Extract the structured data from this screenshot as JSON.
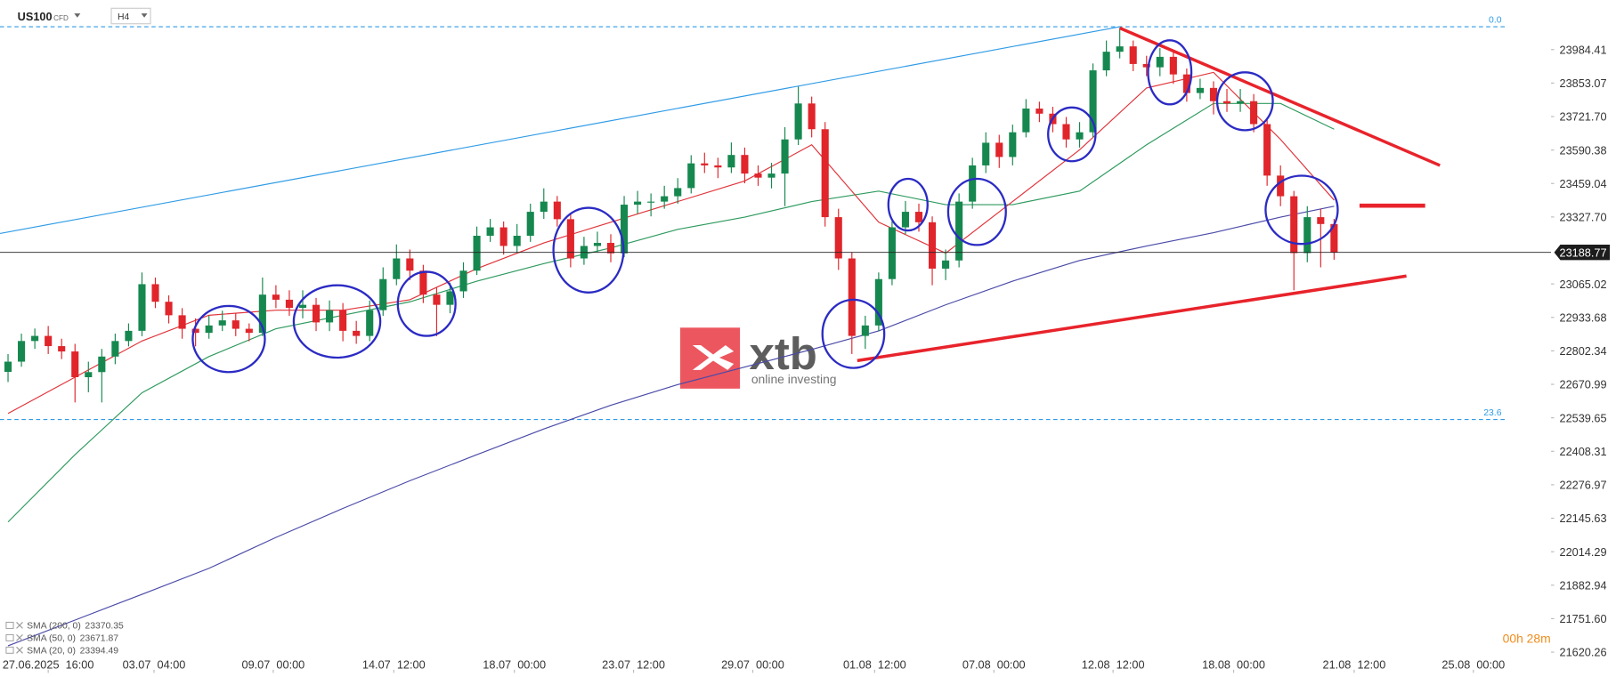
{
  "header": {
    "symbol": "US100",
    "instrument_type": "CFD",
    "timeframe": "H4"
  },
  "logo": {
    "brand": "xtb",
    "tagline": "online investing"
  },
  "timer": "00h 28m",
  "chart_data": {
    "type": "candlestick",
    "xlim": [
      -0.6,
      115.2
    ],
    "ylim": [
      21543,
      24179
    ],
    "xticks": [
      {
        "value": 3,
        "label": "27.06.2025  16:00"
      },
      {
        "value": 10.9,
        "label": "03.07  04:00"
      },
      {
        "value": 19.8,
        "label": "09.07  00:00"
      },
      {
        "value": 28.8,
        "label": "14.07  12:00"
      },
      {
        "value": 37.8,
        "label": "18.07  00:00"
      },
      {
        "value": 46.7,
        "label": "23.07  12:00"
      },
      {
        "value": 55.6,
        "label": "29.07  00:00"
      },
      {
        "value": 64.7,
        "label": "01.08  12:00"
      },
      {
        "value": 73.6,
        "label": "07.08  00:00"
      },
      {
        "value": 82.5,
        "label": "12.08  12:00"
      },
      {
        "value": 91.5,
        "label": "18.08  00:00"
      },
      {
        "value": 100.5,
        "label": "21.08  12:00"
      },
      {
        "value": 109.4,
        "label": "25.08  00:00"
      }
    ],
    "yticks": [
      23984.41,
      23853.07,
      {
        "value": 23721.7,
        "label": "23721.70"
      },
      23590.38,
      23459.04,
      {
        "value": 23327.7,
        "label": "23327.70"
      },
      23065.02,
      22933.68,
      22802.34,
      22670.99,
      22539.65,
      22408.31,
      22276.97,
      22145.63,
      22014.29,
      21882.94,
      {
        "value": 21751.6,
        "label": "21751.60"
      },
      21620.26
    ],
    "colors": {
      "up": "#16884f",
      "down": "#e0252b"
    },
    "open": [
      22720,
      22760,
      22841,
      22861,
      22821,
      22800,
      22699,
      22719,
      22780,
      22841,
      22881,
      23064,
      22995,
      22942,
      22889,
      22873,
      22902,
      22922,
      22889,
      22873,
      23023,
      23003,
      22971,
      22983,
      22914,
      22962,
      22881,
      22861,
      22962,
      23084,
      23165,
      23117,
      23023,
      22983,
      23036,
      23117,
      23254,
      23287,
      23214,
      23254,
      23348,
      23388,
      23319,
      23165,
      23214,
      23226,
      23185,
      23376,
      23388,
      23388,
      23409,
      23441,
      23538,
      23530,
      23522,
      23571,
      23498,
      23482,
      23498,
      23632,
      23773,
      23672,
      23327,
      23165,
      22861,
      22902,
      23084,
      23287,
      23348,
      23307,
      23125,
      23157,
      23388,
      23530,
      23619,
      23563,
      23660,
      23753,
      23733,
      23692,
      23632,
      23660,
      23903,
      23976,
      23997,
      23928,
      23915,
      23956,
      23887,
      23814,
      23834,
      23782,
      23773,
      23782,
      23692,
      23490,
      23409,
      23186,
      23327,
      23300
    ],
    "high": [
      22790,
      22870,
      22890,
      22900,
      22850,
      22830,
      22760,
      22810,
      22870,
      22910,
      23110,
      23090,
      23020,
      22970,
      22930,
      22940,
      22960,
      22950,
      22910,
      23090,
      23060,
      23040,
      23040,
      23010,
      23000,
      22990,
      22920,
      23000,
      23130,
      23220,
      23200,
      23140,
      23050,
      23070,
      23150,
      23290,
      23320,
      23310,
      23300,
      23380,
      23440,
      23410,
      23340,
      23250,
      23270,
      23260,
      23410,
      23430,
      23420,
      23450,
      23480,
      23570,
      23580,
      23560,
      23620,
      23600,
      23530,
      23540,
      23680,
      23840,
      23800,
      23700,
      23360,
      23190,
      22940,
      23110,
      23310,
      23390,
      23380,
      23330,
      23200,
      23420,
      23560,
      23660,
      23650,
      23690,
      23790,
      23780,
      23760,
      23720,
      23700,
      23930,
      24020,
      24070,
      24020,
      23960,
      23990,
      23980,
      23910,
      23870,
      23860,
      23830,
      23830,
      23810,
      23710,
      23530,
      23430,
      23370,
      23360,
      23320
    ],
    "low": [
      22680,
      22740,
      22810,
      22790,
      22770,
      22600,
      22640,
      22600,
      22750,
      22820,
      22860,
      22970,
      22910,
      22850,
      22820,
      22850,
      22880,
      22860,
      22840,
      22860,
      22970,
      22940,
      22930,
      22880,
      22880,
      22840,
      22830,
      22840,
      22940,
      23060,
      23080,
      22990,
      22860,
      22950,
      23010,
      23100,
      23230,
      23180,
      23190,
      23230,
      23320,
      23290,
      23130,
      23140,
      23190,
      23150,
      23170,
      23340,
      23330,
      23360,
      23380,
      23420,
      23500,
      23480,
      23500,
      23460,
      23450,
      23440,
      23370,
      23610,
      23640,
      23290,
      23120,
      22790,
      22810,
      22880,
      23060,
      23260,
      23270,
      23060,
      23080,
      23130,
      23360,
      23500,
      23520,
      23530,
      23640,
      23700,
      23660,
      23600,
      23600,
      23640,
      23880,
      23950,
      23900,
      23880,
      23880,
      23850,
      23780,
      23790,
      23730,
      23740,
      23740,
      23660,
      23450,
      23370,
      23040,
      23150,
      23130,
      23160
    ],
    "close": [
      22760,
      22841,
      22861,
      22821,
      22800,
      22699,
      22719,
      22780,
      22841,
      22881,
      23064,
      22995,
      22942,
      22889,
      22873,
      22902,
      22922,
      22889,
      22873,
      23023,
      23003,
      22971,
      22983,
      22914,
      22962,
      22881,
      22861,
      22962,
      23084,
      23165,
      23117,
      23023,
      22983,
      23036,
      23117,
      23254,
      23287,
      23214,
      23254,
      23348,
      23388,
      23319,
      23165,
      23214,
      23226,
      23185,
      23376,
      23388,
      23388,
      23409,
      23441,
      23538,
      23530,
      23522,
      23571,
      23498,
      23482,
      23498,
      23632,
      23773,
      23672,
      23327,
      23165,
      22861,
      22902,
      23084,
      23287,
      23348,
      23307,
      23125,
      23157,
      23388,
      23530,
      23619,
      23563,
      23660,
      23753,
      23733,
      23692,
      23632,
      23660,
      23903,
      23976,
      23997,
      23928,
      23915,
      23956,
      23887,
      23814,
      23834,
      23782,
      23773,
      23782,
      23692,
      23490,
      23409,
      23186,
      23327,
      23300,
      23189
    ],
    "series": [
      {
        "name": "SMA (200, 0)",
        "color": "#4a4aa8",
        "last": 23370.35,
        "x": [
          0,
          5,
          10,
          15,
          20,
          25,
          30,
          35,
          40,
          45,
          50,
          55,
          60,
          65,
          70,
          75,
          80,
          85,
          90,
          95,
          99
        ],
        "values": [
          21645,
          21746,
          21847,
          21949,
          22070,
          22184,
          22293,
          22395,
          22496,
          22589,
          22670,
          22739,
          22808,
          22881,
          22983,
          23076,
          23157,
          23214,
          23266,
          23327,
          23370
        ]
      },
      {
        "name": "SMA (50, 0)",
        "color": "#2e9a5e",
        "last": 23671.87,
        "x": [
          0,
          5,
          10,
          15,
          20,
          25,
          30,
          35,
          40,
          45,
          50,
          55,
          60,
          65,
          70,
          75,
          80,
          85,
          90,
          95,
          99
        ],
        "values": [
          22131,
          22395,
          22638,
          22780,
          22889,
          22942,
          22995,
          23076,
          23145,
          23206,
          23279,
          23327,
          23388,
          23429,
          23376,
          23376,
          23429,
          23611,
          23773,
          23773,
          23672
        ]
      },
      {
        "name": "SMA (20, 0)",
        "color": "#e0333a",
        "last": 23394.49,
        "x": [
          0,
          5,
          10,
          15,
          20,
          25,
          30,
          35,
          40,
          45,
          50,
          55,
          60,
          65,
          70,
          75,
          80,
          85,
          90,
          95,
          99
        ],
        "values": [
          22557,
          22699,
          22841,
          22942,
          22962,
          22962,
          23003,
          23125,
          23226,
          23307,
          23388,
          23469,
          23611,
          23307,
          23186,
          23388,
          23591,
          23834,
          23895,
          23632,
          23394
        ]
      }
    ],
    "last_price": 23188.77,
    "level_color": "#2f9be6",
    "levels": [
      {
        "label": "0.0",
        "value": 24074
      },
      {
        "label": "23.6",
        "value": 22533
      }
    ],
    "trendlines": [
      {
        "color": "#2f9be6",
        "width": 1,
        "x": [
          -0.6,
          83
        ],
        "values": [
          23263,
          24074
        ]
      },
      {
        "color": "#e8232b",
        "width": 3,
        "x": [
          83,
          106.9
        ],
        "values": [
          24069,
          23530
        ]
      },
      {
        "color": "#e8232b",
        "width": 3,
        "x": [
          63.4,
          104.4
        ],
        "values": [
          22764,
          23096
        ]
      },
      {
        "color": "#e8232b",
        "width": 4,
        "x": [
          100.9,
          105.8
        ],
        "values": [
          23372,
          23372
        ]
      }
    ]
  }
}
